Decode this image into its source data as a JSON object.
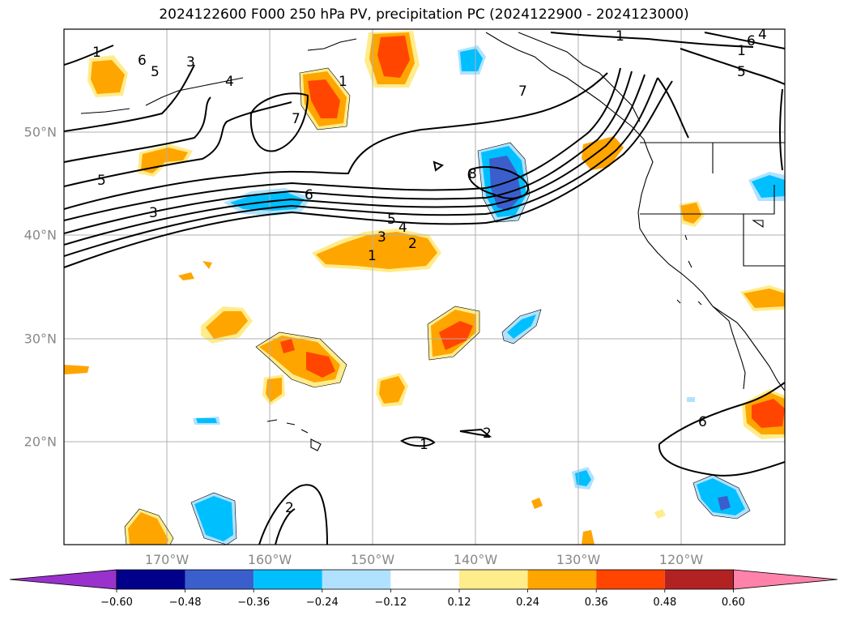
{
  "title": "2024122600 F000 250 hPa PV, precipitation PC (2024122900 - 2024123000)",
  "map": {
    "lon_labels": [
      "170°W",
      "160°W",
      "150°W",
      "140°W",
      "130°W",
      "120°W"
    ],
    "lat_labels": [
      "50°N",
      "40°N",
      "30°N",
      "20°N"
    ],
    "contour_labels": [
      "1",
      "2",
      "3",
      "4",
      "5",
      "6",
      "7",
      "8",
      "1",
      "2",
      "3",
      "4",
      "5",
      "6",
      "7",
      "1",
      "1",
      "1",
      "2",
      "5",
      "6",
      "4",
      "1",
      "6",
      "3",
      "5"
    ]
  },
  "colorbar": {
    "ticks": [
      "−0.60",
      "−0.48",
      "−0.36",
      "−0.24",
      "−0.12",
      "0.12",
      "0.24",
      "0.36",
      "0.48",
      "0.60"
    ],
    "colors": [
      "#9932cc",
      "#00008b",
      "#3a5fcd",
      "#00bfff",
      "#b0e2ff",
      "#ffffff",
      "#ffec8b",
      "#ffa500",
      "#ff4500",
      "#b22222",
      "#ff82ab"
    ]
  }
}
